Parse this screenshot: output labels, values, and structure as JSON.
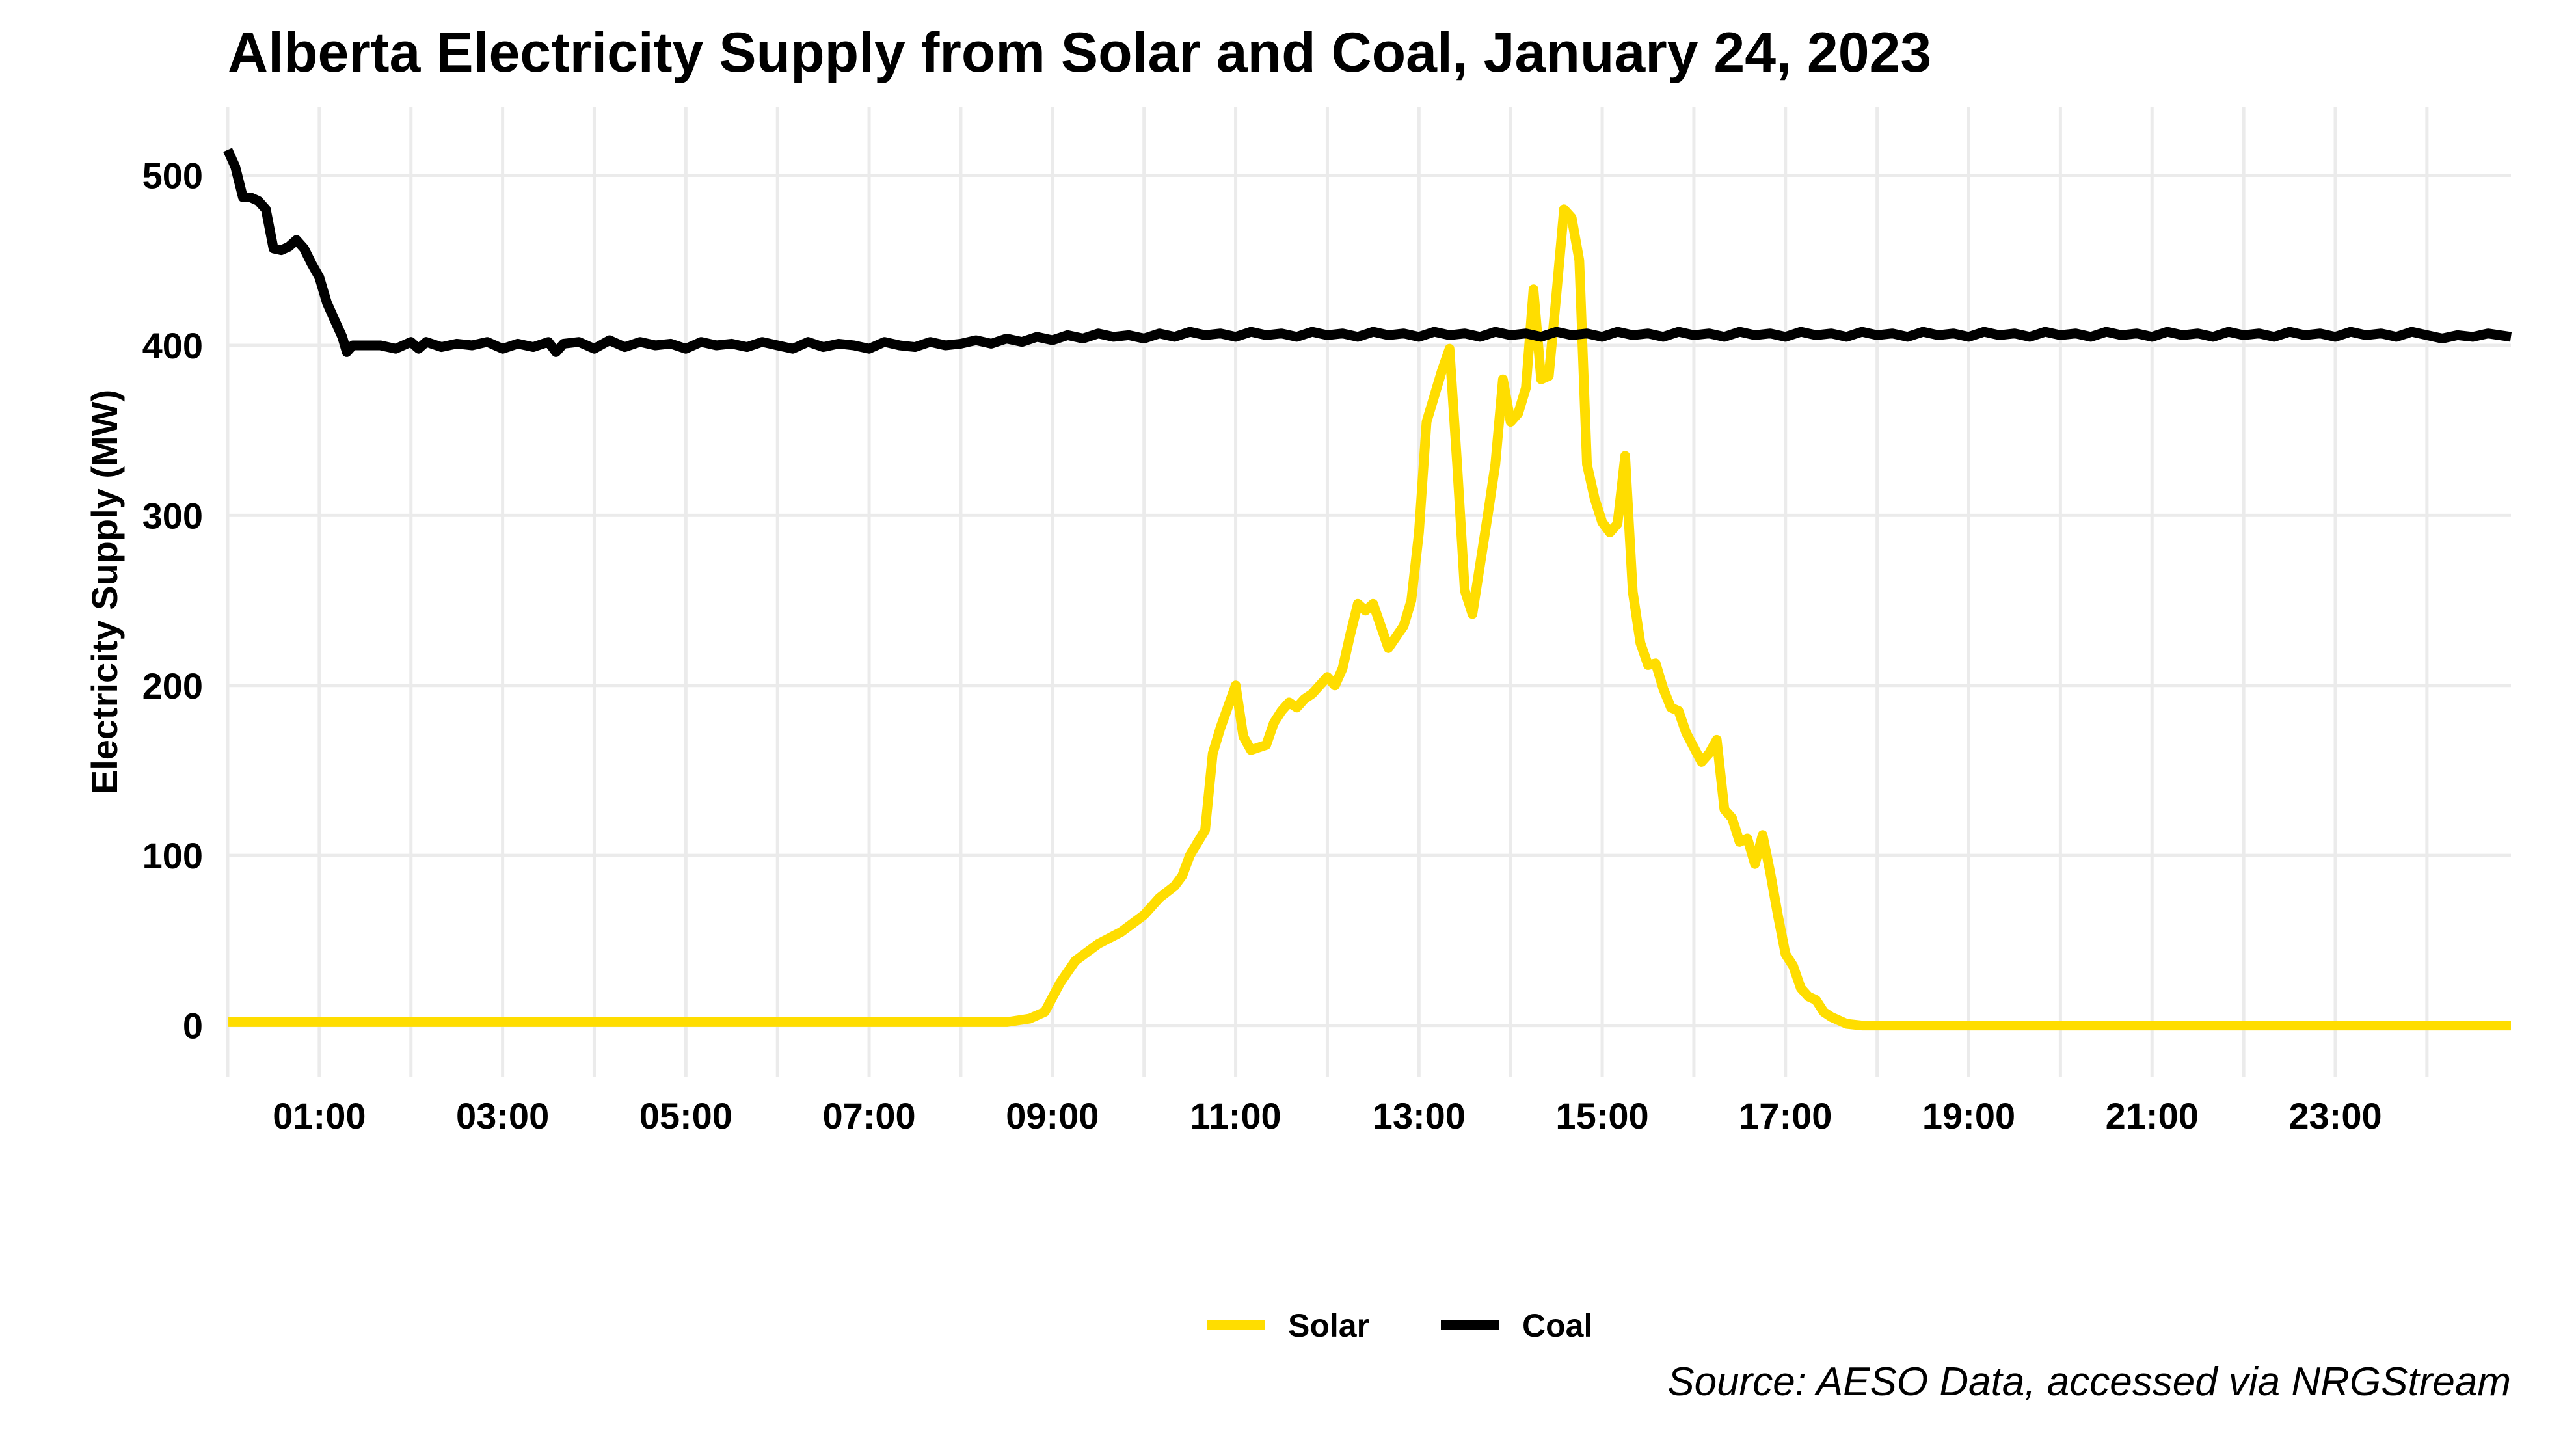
{
  "chart_data": {
    "type": "line",
    "title": "Alberta Electricity Supply from Solar and Coal, January 24, 2023",
    "ylabel": "Electricity Supply (MW)",
    "xlabel": "",
    "caption": "Source: AESO Data, accessed via NRGStream",
    "legend_position": "bottom",
    "grid": true,
    "xlim": [
      "00:00",
      "24:55"
    ],
    "ylim": [
      -30,
      540
    ],
    "y_ticks": [
      0,
      100,
      200,
      300,
      400,
      500
    ],
    "x_tick_labels": [
      "01:00",
      "03:00",
      "05:00",
      "07:00",
      "09:00",
      "11:00",
      "13:00",
      "15:00",
      "17:00",
      "19:00",
      "21:00",
      "23:00"
    ],
    "x_minor_grid": [
      "00:00",
      "02:00",
      "04:00",
      "06:00",
      "08:00",
      "10:00",
      "12:00",
      "14:00",
      "16:00",
      "18:00",
      "20:00",
      "22:00",
      "24:00"
    ],
    "series": [
      {
        "name": "Solar",
        "color": "#FFDD00",
        "points": [
          [
            "00:00",
            2
          ],
          [
            "08:00",
            2
          ],
          [
            "08:30",
            2
          ],
          [
            "08:45",
            4
          ],
          [
            "08:55",
            8
          ],
          [
            "09:05",
            25
          ],
          [
            "09:15",
            38
          ],
          [
            "09:30",
            48
          ],
          [
            "09:45",
            55
          ],
          [
            "10:00",
            65
          ],
          [
            "10:10",
            75
          ],
          [
            "10:20",
            82
          ],
          [
            "10:25",
            88
          ],
          [
            "10:30",
            100
          ],
          [
            "10:40",
            115
          ],
          [
            "10:45",
            160
          ],
          [
            "10:50",
            175
          ],
          [
            "11:00",
            200
          ],
          [
            "11:05",
            170
          ],
          [
            "11:10",
            162
          ],
          [
            "11:20",
            165
          ],
          [
            "11:25",
            178
          ],
          [
            "11:30",
            185
          ],
          [
            "11:35",
            190
          ],
          [
            "11:40",
            187
          ],
          [
            "11:45",
            192
          ],
          [
            "11:50",
            195
          ],
          [
            "11:55",
            200
          ],
          [
            "12:00",
            205
          ],
          [
            "12:05",
            200
          ],
          [
            "12:10",
            210
          ],
          [
            "12:15",
            230
          ],
          [
            "12:20",
            248
          ],
          [
            "12:25",
            244
          ],
          [
            "12:30",
            248
          ],
          [
            "12:35",
            235
          ],
          [
            "12:40",
            222
          ],
          [
            "12:50",
            235
          ],
          [
            "12:55",
            250
          ],
          [
            "13:00",
            290
          ],
          [
            "13:05",
            355
          ],
          [
            "13:15",
            385
          ],
          [
            "13:20",
            398
          ],
          [
            "13:25",
            330
          ],
          [
            "13:30",
            256
          ],
          [
            "13:35",
            242
          ],
          [
            "13:45",
            300
          ],
          [
            "13:50",
            330
          ],
          [
            "13:55",
            380
          ],
          [
            "14:00",
            355
          ],
          [
            "14:05",
            360
          ],
          [
            "14:10",
            375
          ],
          [
            "14:15",
            433
          ],
          [
            "14:20",
            380
          ],
          [
            "14:25",
            382
          ],
          [
            "14:30",
            430
          ],
          [
            "14:35",
            480
          ],
          [
            "14:40",
            475
          ],
          [
            "14:45",
            450
          ],
          [
            "14:50",
            330
          ],
          [
            "14:55",
            310
          ],
          [
            "15:00",
            296
          ],
          [
            "15:05",
            290
          ],
          [
            "15:10",
            295
          ],
          [
            "15:15",
            335
          ],
          [
            "15:20",
            255
          ],
          [
            "15:25",
            225
          ],
          [
            "15:30",
            212
          ],
          [
            "15:35",
            213
          ],
          [
            "15:40",
            198
          ],
          [
            "15:45",
            187
          ],
          [
            "15:50",
            185
          ],
          [
            "15:55",
            172
          ],
          [
            "16:05",
            155
          ],
          [
            "16:10",
            160
          ],
          [
            "16:15",
            168
          ],
          [
            "16:20",
            127
          ],
          [
            "16:25",
            122
          ],
          [
            "16:30",
            108
          ],
          [
            "16:35",
            110
          ],
          [
            "16:40",
            95
          ],
          [
            "16:45",
            112
          ],
          [
            "16:50",
            90
          ],
          [
            "16:55",
            65
          ],
          [
            "17:00",
            42
          ],
          [
            "17:05",
            35
          ],
          [
            "17:10",
            22
          ],
          [
            "17:15",
            17
          ],
          [
            "17:20",
            15
          ],
          [
            "17:25",
            8
          ],
          [
            "17:30",
            5
          ],
          [
            "17:40",
            1
          ],
          [
            "17:50",
            0
          ],
          [
            "18:00",
            0
          ],
          [
            "24:55",
            0
          ]
        ]
      },
      {
        "name": "Coal",
        "color": "#000000",
        "points": [
          [
            "00:00",
            515
          ],
          [
            "00:05",
            505
          ],
          [
            "00:10",
            487
          ],
          [
            "00:15",
            487
          ],
          [
            "00:20",
            485
          ],
          [
            "00:25",
            480
          ],
          [
            "00:30",
            457
          ],
          [
            "00:35",
            456
          ],
          [
            "00:40",
            458
          ],
          [
            "00:45",
            462
          ],
          [
            "00:50",
            457
          ],
          [
            "00:55",
            448
          ],
          [
            "01:00",
            440
          ],
          [
            "01:05",
            425
          ],
          [
            "01:10",
            415
          ],
          [
            "01:15",
            405
          ],
          [
            "01:18",
            396
          ],
          [
            "01:22",
            400
          ],
          [
            "01:30",
            400
          ],
          [
            "01:40",
            400
          ],
          [
            "01:50",
            398
          ],
          [
            "02:00",
            402
          ],
          [
            "02:05",
            398
          ],
          [
            "02:10",
            402
          ],
          [
            "02:20",
            399
          ],
          [
            "02:30",
            401
          ],
          [
            "02:40",
            400
          ],
          [
            "02:50",
            402
          ],
          [
            "03:00",
            398
          ],
          [
            "03:10",
            401
          ],
          [
            "03:20",
            399
          ],
          [
            "03:30",
            402
          ],
          [
            "03:35",
            396
          ],
          [
            "03:40",
            401
          ],
          [
            "03:50",
            402
          ],
          [
            "04:00",
            398
          ],
          [
            "04:10",
            403
          ],
          [
            "04:20",
            399
          ],
          [
            "04:30",
            402
          ],
          [
            "04:40",
            400
          ],
          [
            "04:50",
            401
          ],
          [
            "05:00",
            398
          ],
          [
            "05:10",
            402
          ],
          [
            "05:20",
            400
          ],
          [
            "05:30",
            401
          ],
          [
            "05:40",
            399
          ],
          [
            "05:50",
            402
          ],
          [
            "06:00",
            400
          ],
          [
            "06:10",
            398
          ],
          [
            "06:20",
            402
          ],
          [
            "06:30",
            399
          ],
          [
            "06:40",
            401
          ],
          [
            "06:50",
            400
          ],
          [
            "07:00",
            398
          ],
          [
            "07:10",
            402
          ],
          [
            "07:20",
            400
          ],
          [
            "07:30",
            399
          ],
          [
            "07:40",
            402
          ],
          [
            "07:50",
            400
          ],
          [
            "08:00",
            401
          ],
          [
            "08:10",
            403
          ],
          [
            "08:20",
            401
          ],
          [
            "08:30",
            404
          ],
          [
            "08:40",
            402
          ],
          [
            "08:50",
            405
          ],
          [
            "09:00",
            403
          ],
          [
            "09:10",
            406
          ],
          [
            "09:20",
            404
          ],
          [
            "09:30",
            407
          ],
          [
            "09:40",
            405
          ],
          [
            "09:50",
            406
          ],
          [
            "10:00",
            404
          ],
          [
            "10:10",
            407
          ],
          [
            "10:20",
            405
          ],
          [
            "10:30",
            408
          ],
          [
            "10:40",
            406
          ],
          [
            "10:50",
            407
          ],
          [
            "11:00",
            405
          ],
          [
            "11:10",
            408
          ],
          [
            "11:20",
            406
          ],
          [
            "11:30",
            407
          ],
          [
            "11:40",
            405
          ],
          [
            "11:50",
            408
          ],
          [
            "12:00",
            406
          ],
          [
            "12:10",
            407
          ],
          [
            "12:20",
            405
          ],
          [
            "12:30",
            408
          ],
          [
            "12:40",
            406
          ],
          [
            "12:50",
            407
          ],
          [
            "13:00",
            405
          ],
          [
            "13:10",
            408
          ],
          [
            "13:20",
            406
          ],
          [
            "13:30",
            407
          ],
          [
            "13:40",
            405
          ],
          [
            "13:50",
            408
          ],
          [
            "14:00",
            406
          ],
          [
            "14:10",
            407
          ],
          [
            "14:20",
            405
          ],
          [
            "14:30",
            408
          ],
          [
            "14:40",
            406
          ],
          [
            "14:50",
            407
          ],
          [
            "15:00",
            405
          ],
          [
            "15:10",
            408
          ],
          [
            "15:20",
            406
          ],
          [
            "15:30",
            407
          ],
          [
            "15:40",
            405
          ],
          [
            "15:50",
            408
          ],
          [
            "16:00",
            406
          ],
          [
            "16:10",
            407
          ],
          [
            "16:20",
            405
          ],
          [
            "16:30",
            408
          ],
          [
            "16:40",
            406
          ],
          [
            "16:50",
            407
          ],
          [
            "17:00",
            405
          ],
          [
            "17:10",
            408
          ],
          [
            "17:20",
            406
          ],
          [
            "17:30",
            407
          ],
          [
            "17:40",
            405
          ],
          [
            "17:50",
            408
          ],
          [
            "18:00",
            406
          ],
          [
            "18:10",
            407
          ],
          [
            "18:20",
            405
          ],
          [
            "18:30",
            408
          ],
          [
            "18:40",
            406
          ],
          [
            "18:50",
            407
          ],
          [
            "19:00",
            405
          ],
          [
            "19:10",
            408
          ],
          [
            "19:20",
            406
          ],
          [
            "19:30",
            407
          ],
          [
            "19:40",
            405
          ],
          [
            "19:50",
            408
          ],
          [
            "20:00",
            406
          ],
          [
            "20:10",
            407
          ],
          [
            "20:20",
            405
          ],
          [
            "20:30",
            408
          ],
          [
            "20:40",
            406
          ],
          [
            "20:50",
            407
          ],
          [
            "21:00",
            405
          ],
          [
            "21:10",
            408
          ],
          [
            "21:20",
            406
          ],
          [
            "21:30",
            407
          ],
          [
            "21:40",
            405
          ],
          [
            "21:50",
            408
          ],
          [
            "22:00",
            406
          ],
          [
            "22:10",
            407
          ],
          [
            "22:20",
            405
          ],
          [
            "22:30",
            408
          ],
          [
            "22:40",
            406
          ],
          [
            "22:50",
            407
          ],
          [
            "23:00",
            405
          ],
          [
            "23:10",
            408
          ],
          [
            "23:20",
            406
          ],
          [
            "23:30",
            407
          ],
          [
            "23:40",
            405
          ],
          [
            "23:50",
            408
          ],
          [
            "24:00",
            406
          ],
          [
            "24:10",
            404
          ],
          [
            "24:20",
            406
          ],
          [
            "24:30",
            405
          ],
          [
            "24:40",
            407
          ],
          [
            "24:55",
            405
          ]
        ]
      }
    ]
  }
}
